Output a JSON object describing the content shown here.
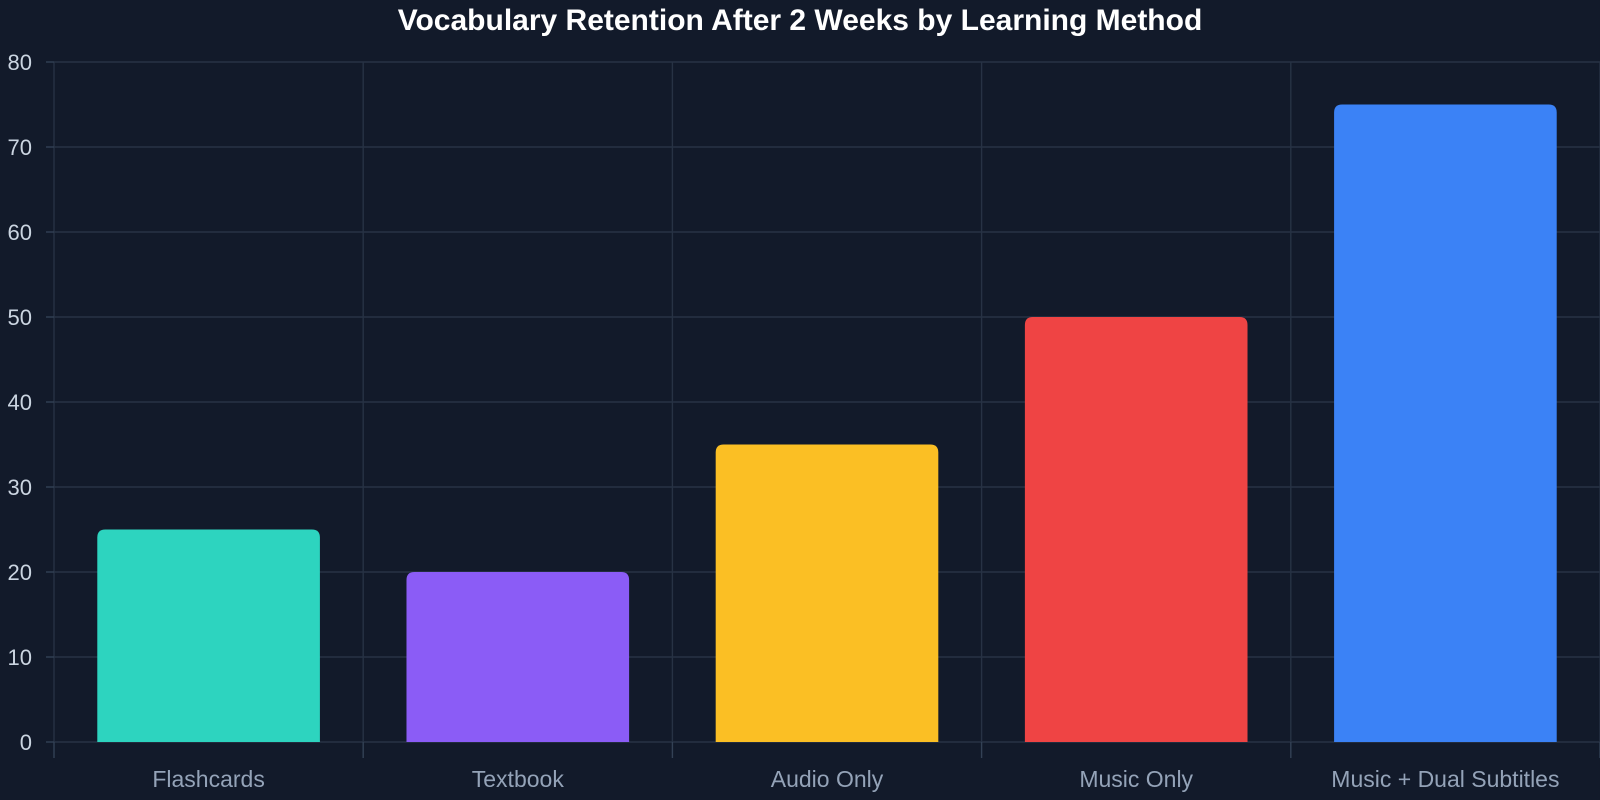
{
  "chart_data": {
    "type": "bar",
    "title": "Vocabulary Retention After 2 Weeks by Learning Method",
    "xlabel": "",
    "ylabel": "",
    "categories": [
      "Flashcards",
      "Textbook",
      "Audio Only",
      "Music Only",
      "Music + Dual Subtitles"
    ],
    "values": [
      25,
      20,
      35,
      50,
      75
    ],
    "colors": [
      "#2dd4bf",
      "#8b5cf6",
      "#fbbf24",
      "#ef4444",
      "#3b82f6"
    ],
    "ylim": [
      0,
      80
    ],
    "yticks": [
      0,
      10,
      20,
      30,
      40,
      50,
      60,
      70,
      80
    ],
    "grid": true,
    "legend": "none"
  }
}
